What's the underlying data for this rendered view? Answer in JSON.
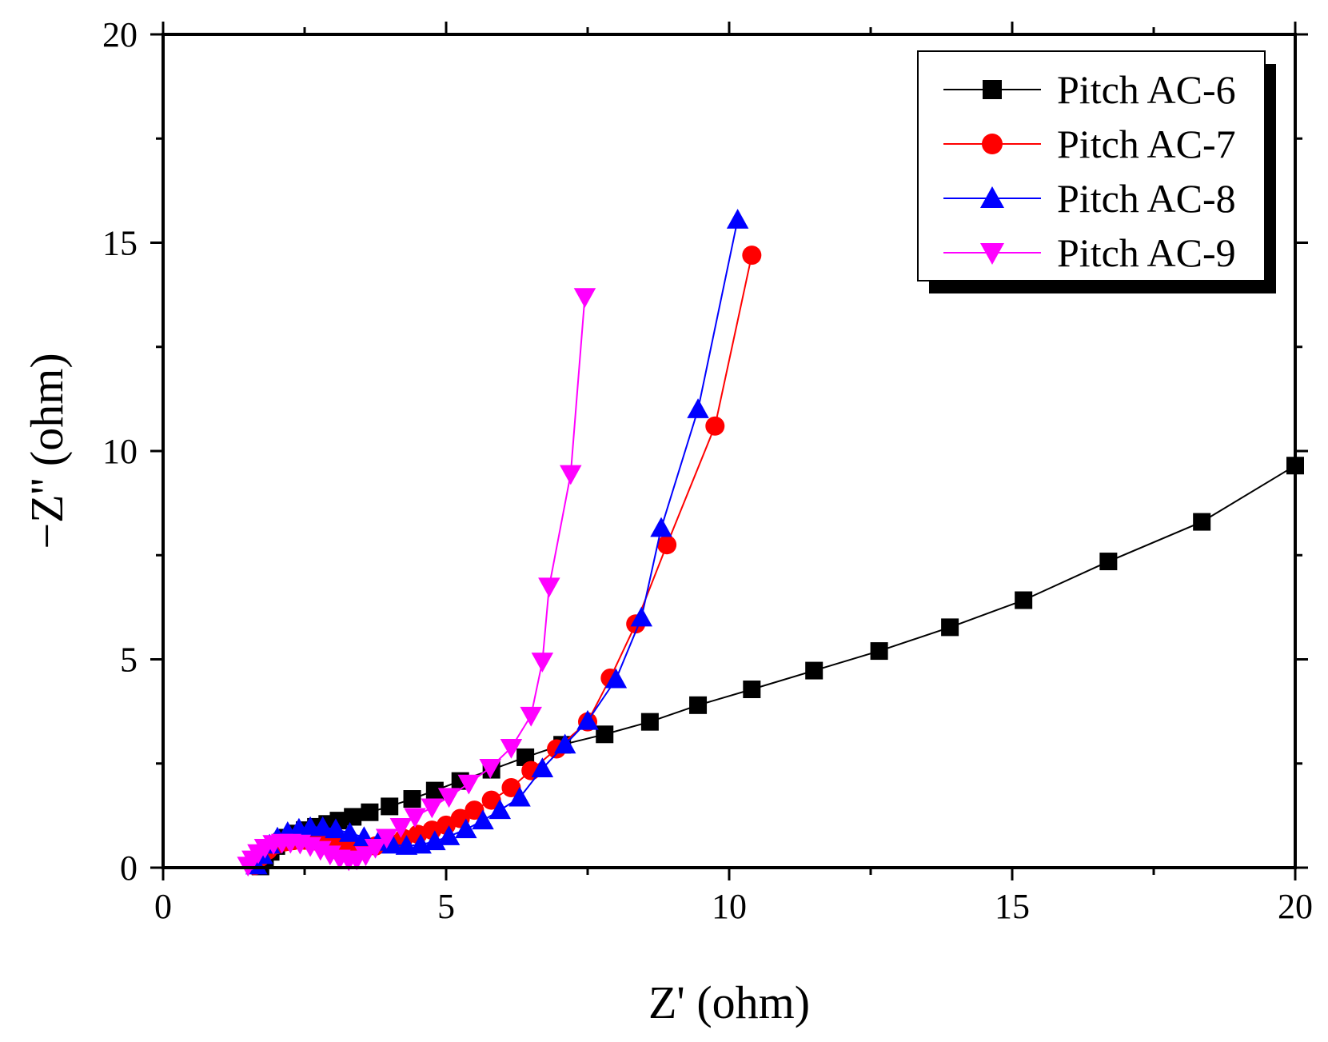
{
  "chart_data": {
    "type": "scatter",
    "title": "",
    "xlabel": "Z' (ohm)",
    "ylabel": "−Z'' (ohm)",
    "xlim": [
      0,
      20
    ],
    "ylim": [
      0,
      20
    ],
    "xticks": [
      0,
      5,
      10,
      15,
      20
    ],
    "yticks": [
      0,
      5,
      10,
      15,
      20
    ],
    "grid": false,
    "legend_position": "top-right",
    "series": [
      {
        "name": "Pitch AC-6",
        "color": "#000000",
        "marker": "square",
        "x": [
          1.72,
          1.8,
          1.9,
          2.0,
          2.1,
          2.2,
          2.35,
          2.5,
          2.7,
          2.9,
          3.1,
          3.35,
          3.65,
          4.0,
          4.4,
          4.8,
          5.25,
          5.8,
          6.4,
          7.05,
          7.8,
          8.6,
          9.45,
          10.4,
          11.5,
          12.65,
          13.9,
          15.2,
          16.7,
          18.35,
          20.0
        ],
        "y": [
          0.03,
          0.2,
          0.38,
          0.52,
          0.62,
          0.72,
          0.82,
          0.9,
          0.98,
          1.05,
          1.13,
          1.22,
          1.33,
          1.47,
          1.65,
          1.85,
          2.08,
          2.35,
          2.65,
          2.95,
          3.2,
          3.5,
          3.9,
          4.28,
          4.73,
          5.2,
          5.77,
          6.42,
          7.35,
          8.3,
          9.65
        ]
      },
      {
        "name": "Pitch AC-7",
        "color": "#ff0000",
        "marker": "circle",
        "x": [
          1.62,
          1.72,
          1.85,
          2.0,
          2.15,
          2.3,
          2.5,
          2.7,
          2.9,
          3.1,
          3.3,
          3.5,
          3.75,
          4.0,
          4.25,
          4.5,
          4.75,
          5.0,
          5.25,
          5.5,
          5.8,
          6.15,
          6.5,
          6.95,
          7.5,
          7.9,
          8.35,
          8.9,
          9.75,
          10.4
        ],
        "y": [
          0.05,
          0.25,
          0.42,
          0.55,
          0.62,
          0.65,
          0.66,
          0.64,
          0.58,
          0.5,
          0.45,
          0.45,
          0.52,
          0.6,
          0.7,
          0.8,
          0.9,
          1.02,
          1.18,
          1.38,
          1.62,
          1.92,
          2.33,
          2.85,
          3.5,
          4.55,
          5.85,
          7.75,
          10.6,
          14.7
        ]
      },
      {
        "name": "Pitch AC-8",
        "color": "#0000ff",
        "marker": "triangle-up",
        "x": [
          1.65,
          1.75,
          1.88,
          2.02,
          2.2,
          2.4,
          2.6,
          2.82,
          3.05,
          3.3,
          3.55,
          3.8,
          4.05,
          4.3,
          4.55,
          4.8,
          5.05,
          5.35,
          5.65,
          5.95,
          6.3,
          6.7,
          7.1,
          7.5,
          8.0,
          8.45,
          8.8,
          9.45,
          10.15
        ],
        "y": [
          0.05,
          0.3,
          0.55,
          0.72,
          0.85,
          0.93,
          0.97,
          0.97,
          0.92,
          0.83,
          0.73,
          0.62,
          0.55,
          0.52,
          0.55,
          0.63,
          0.75,
          0.92,
          1.13,
          1.38,
          1.68,
          2.38,
          2.95,
          3.52,
          4.52,
          6.0,
          8.15,
          11.0,
          15.55
        ]
      },
      {
        "name": "Pitch AC-9",
        "color": "#ff00ff",
        "marker": "triangle-down",
        "x": [
          1.5,
          1.58,
          1.68,
          1.8,
          1.95,
          2.1,
          2.25,
          2.42,
          2.6,
          2.78,
          2.95,
          3.12,
          3.28,
          3.42,
          3.58,
          3.75,
          3.95,
          4.2,
          4.45,
          4.75,
          5.05,
          5.4,
          5.78,
          6.15,
          6.5,
          6.7,
          6.82,
          7.2,
          7.45
        ],
        "y": [
          0.05,
          0.2,
          0.35,
          0.48,
          0.57,
          0.6,
          0.6,
          0.58,
          0.52,
          0.43,
          0.32,
          0.22,
          0.18,
          0.2,
          0.3,
          0.48,
          0.72,
          0.98,
          1.22,
          1.45,
          1.7,
          2.02,
          2.4,
          2.88,
          3.65,
          4.95,
          6.75,
          9.45,
          13.7
        ]
      }
    ]
  }
}
